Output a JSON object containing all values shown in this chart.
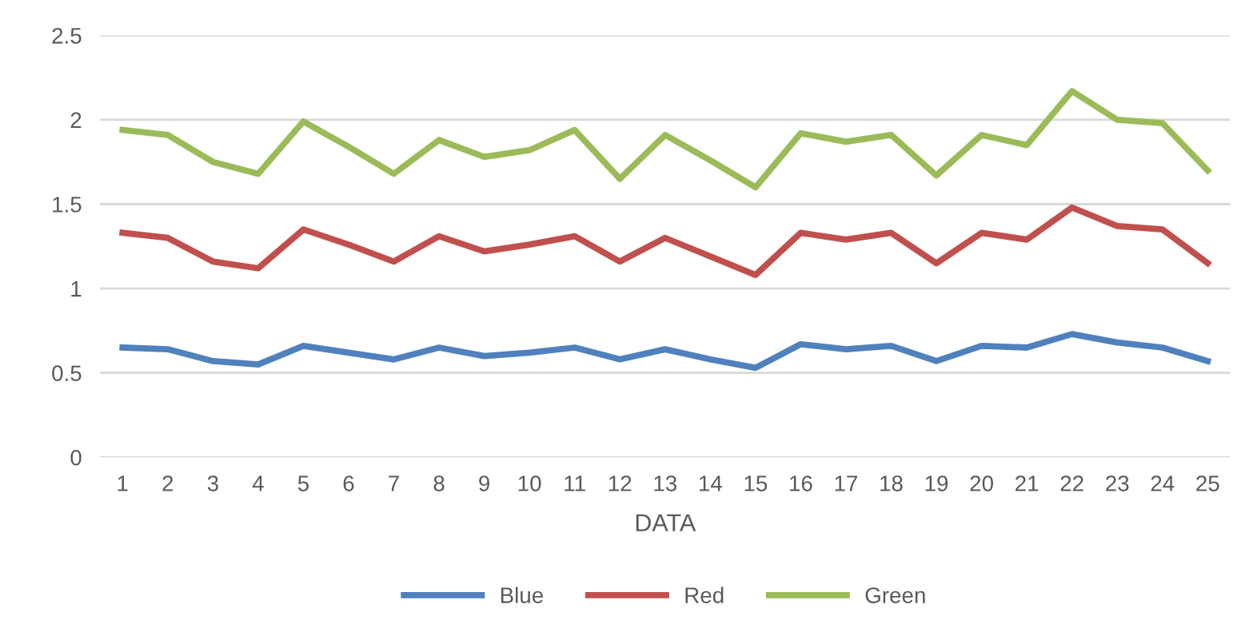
{
  "chart_data": {
    "type": "line",
    "xlabel": "DATA",
    "categories": [
      "1",
      "2",
      "3",
      "4",
      "5",
      "6",
      "7",
      "8",
      "9",
      "10",
      "11",
      "12",
      "13",
      "14",
      "15",
      "16",
      "17",
      "18",
      "19",
      "20",
      "21",
      "22",
      "23",
      "24",
      "25"
    ],
    "series": [
      {
        "name": "Blue",
        "color": "#4f81bd",
        "values": [
          0.65,
          0.64,
          0.57,
          0.55,
          0.66,
          0.62,
          0.58,
          0.65,
          0.6,
          0.62,
          0.65,
          0.58,
          0.64,
          0.58,
          0.53,
          0.67,
          0.64,
          0.66,
          0.57,
          0.66,
          0.65,
          0.73,
          0.68,
          0.65,
          0.57
        ]
      },
      {
        "name": "Red",
        "color": "#c0504d",
        "values": [
          1.33,
          1.3,
          1.16,
          1.12,
          1.35,
          1.26,
          1.16,
          1.31,
          1.22,
          1.26,
          1.31,
          1.16,
          1.3,
          1.19,
          1.08,
          1.33,
          1.29,
          1.33,
          1.15,
          1.33,
          1.29,
          1.48,
          1.37,
          1.35,
          1.15
        ]
      },
      {
        "name": "Green",
        "color": "#9bbb59",
        "values": [
          1.94,
          1.91,
          1.75,
          1.68,
          1.99,
          1.84,
          1.68,
          1.88,
          1.78,
          1.82,
          1.94,
          1.65,
          1.91,
          1.76,
          1.6,
          1.92,
          1.87,
          1.91,
          1.67,
          1.91,
          1.85,
          2.17,
          2.0,
          1.98,
          1.7
        ]
      }
    ],
    "ylim": [
      0,
      2.5
    ],
    "yticks": [
      0,
      0.5,
      1,
      1.5,
      2,
      2.5
    ],
    "grid": "y",
    "legend": "bottom",
    "marker": "none",
    "line_style": "solid"
  }
}
